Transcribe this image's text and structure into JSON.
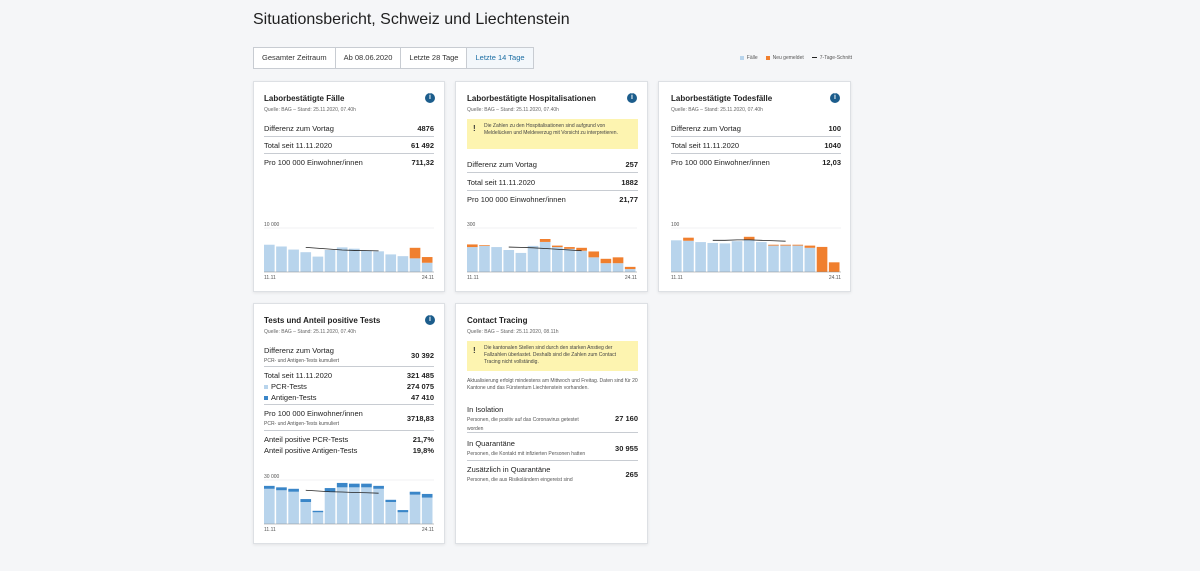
{
  "page": {
    "title": "Situationsbericht, Schweiz und Liechtenstein"
  },
  "tabs": [
    {
      "label": "Gesamter Zeitraum"
    },
    {
      "label": "Ab 08.06.2020"
    },
    {
      "label": "Letzte 28 Tage"
    },
    {
      "label": "Letzte 14 Tage",
      "active": true
    }
  ],
  "legend": {
    "faelle": "Fälle",
    "neu": "Neu gemeldet",
    "schnitt": "7-Tage-Schnitt"
  },
  "colors": {
    "bar": "#b8d4ec",
    "new": "#f07f2e",
    "antigen": "#3a86c8",
    "line": "#222222",
    "info": "#1c5d8c",
    "warn": "#fdf4b0"
  },
  "cards": {
    "faelle": {
      "title": "Laborbestätigte Fälle",
      "source": "Quelle: BAG – Stand: 25.11.2020, 07.40h",
      "rows": [
        {
          "label": "Differenz zum Vortag",
          "value": "4876"
        },
        {
          "label": "Total seit 11.11.2020",
          "value": "61 492"
        },
        {
          "label": "Pro 100 000 Einwohner/innen",
          "value": "711,32"
        }
      ],
      "y_label": "10 000",
      "x_start": "11.11",
      "x_end": "24.11"
    },
    "hosp": {
      "title": "Laborbestätigte Hospitalisationen",
      "source": "Quelle: BAG – Stand: 25.11.2020, 07.40h",
      "warning": "Die Zahlen zu den Hospitalisationen sind aufgrund von Meldelücken und Meldeverzug mit Vorsicht zu interpretieren.",
      "rows": [
        {
          "label": "Differenz zum Vortag",
          "value": "257"
        },
        {
          "label": "Total seit 11.11.2020",
          "value": "1882"
        },
        {
          "label": "Pro 100 000 Einwohner/innen",
          "value": "21,77"
        }
      ],
      "y_label": "300",
      "x_start": "11.11",
      "x_end": "24.11"
    },
    "tod": {
      "title": "Laborbestätigte Todesfälle",
      "source": "Quelle: BAG – Stand: 25.11.2020, 07.40h",
      "rows": [
        {
          "label": "Differenz zum Vortag",
          "value": "100"
        },
        {
          "label": "Total seit 11.11.2020",
          "value": "1040"
        },
        {
          "label": "Pro 100 000 Einwohner/innen",
          "value": "12,03"
        }
      ],
      "y_label": "100",
      "x_start": "11.11",
      "x_end": "24.11"
    },
    "tests": {
      "title": "Tests und Anteil positive Tests",
      "source": "Quelle: BAG – Stand: 25.11.2020, 07.40h",
      "diff_label": "Differenz zum Vortag",
      "diff_sub": "PCR- und Antigen-Tests kumuliert",
      "diff_value": "30 392",
      "total_label": "Total seit 11.11.2020",
      "total_value": "321 485",
      "pcr_label": "PCR-Tests",
      "pcr_value": "274 075",
      "ag_label": "Antigen-Tests",
      "ag_value": "47 410",
      "per_label": "Pro 100 000 Einwohner/innen",
      "per_sub": "PCR- und Antigen-Tests kumuliert",
      "per_value": "3718,83",
      "pos_pcr_label": "Anteil positive PCR-Tests",
      "pos_pcr_value": "21,7%",
      "pos_ag_label": "Anteil positive Antigen-Tests",
      "pos_ag_value": "19,8%",
      "y_label": "30 000",
      "x_start": "11.11",
      "x_end": "24.11"
    },
    "contact": {
      "title": "Contact Tracing",
      "source": "Quelle: BAG – Stand: 25.11.2020, 08.11h",
      "warning": "Die kantonalen Stellen sind durch den starken Anstieg der Fallzahlen überlastet. Deshalb sind die Zahlen zum Contact Tracing nicht vollständig.",
      "note": "Aktualisierung erfolgt mindestens am Mittwoch und Freitag. Daten sind für 20 Kantone und das Fürstentum Liechtenstein vorhanden.",
      "isolation_label": "In Isolation",
      "isolation_sub": "Personen, die positiv auf das Coronavirus getestet worden",
      "isolation_value": "27 160",
      "quar_label": "In Quarantäne",
      "quar_sub": "Personen, die Kontakt mit infizierten Personen hatten",
      "quar_value": "30 955",
      "zus_label": "Zusätzlich in Quarantäne",
      "zus_sub": "Personen, die aus Risikoländern eingereist sind",
      "zus_value": "265"
    }
  },
  "chart_data": [
    {
      "type": "bar",
      "title": "Laborbestätigte Fälle",
      "ylim": [
        0,
        10000
      ],
      "base": [
        6200,
        5800,
        5100,
        4500,
        3500,
        5000,
        5600,
        5300,
        4900,
        4700,
        4000,
        3600,
        3100,
        2100
      ],
      "new": [
        0,
        0,
        0,
        0,
        0,
        0,
        0,
        0,
        0,
        0,
        0,
        0,
        2400,
        1300
      ],
      "avg": [
        null,
        null,
        null,
        5600,
        5400,
        5200,
        5000,
        4900,
        4850,
        4800,
        null,
        null,
        null,
        null
      ]
    },
    {
      "type": "bar",
      "title": "Laborbestätigte Hospitalisationen",
      "ylim": [
        0,
        300
      ],
      "base": [
        170,
        178,
        170,
        150,
        130,
        178,
        205,
        170,
        158,
        145,
        100,
        60,
        60,
        20
      ],
      "new": [
        18,
        5,
        0,
        0,
        0,
        0,
        20,
        10,
        12,
        20,
        40,
        30,
        40,
        15
      ],
      "avg": [
        null,
        null,
        null,
        170,
        168,
        165,
        160,
        155,
        150,
        145,
        null,
        null,
        null,
        null
      ]
    },
    {
      "type": "bar",
      "title": "Laborbestätigte Todesfälle",
      "ylim": [
        0,
        100
      ],
      "base": [
        72,
        71,
        68,
        66,
        65,
        70,
        73,
        68,
        60,
        60,
        60,
        55,
        0,
        0
      ],
      "new": [
        0,
        7,
        0,
        0,
        0,
        0,
        7,
        0,
        2,
        2,
        2,
        5,
        57,
        22
      ],
      "avg": [
        null,
        null,
        null,
        72,
        72,
        73,
        73,
        72,
        71,
        70,
        null,
        null,
        null,
        null
      ]
    },
    {
      "type": "bar",
      "title": "Tests und Anteil positive Tests",
      "ylim": [
        0,
        30000
      ],
      "base": [
        24000,
        23000,
        22000,
        15000,
        8000,
        22000,
        25000,
        25000,
        25000,
        24000,
        15000,
        8000,
        20000,
        18000
      ],
      "new": [
        2000,
        2000,
        2000,
        2000,
        1000,
        2500,
        3000,
        2500,
        2500,
        2000,
        1500,
        1500,
        2000,
        2500
      ],
      "avg": [
        null,
        null,
        null,
        23000,
        22500,
        22000,
        21800,
        21500,
        21300,
        21000,
        null,
        null,
        null,
        null
      ]
    }
  ]
}
